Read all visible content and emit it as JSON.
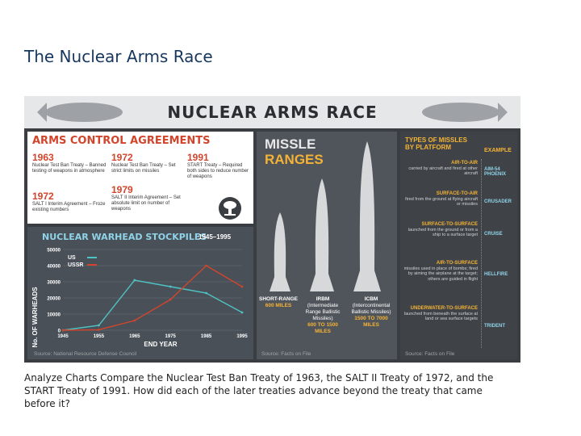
{
  "slide_title": "The Nuclear Arms Race",
  "caption": "Analyze Charts Compare the Nuclear Test Ban Treaty of 1963, the SALT II Treaty of 1972, and the START Treaty of 1991. How did each of the later treaties advance beyond the treaty that came before it?",
  "infographic": {
    "title": "NUCLEAR ARMS RACE",
    "arms_control": {
      "heading": "ARMS CONTROL AGREEMENTS",
      "treaties": [
        {
          "year": "1963",
          "text": "Nuclear Test Ban Treaty – Banned testing of weapons in atmosphere"
        },
        {
          "year": "1972",
          "text": "Nuclear Test Ban Treaty – Set strict limits on missiles"
        },
        {
          "year": "1991",
          "text": "START Treaty – Required both sides to reduce number of weapons"
        },
        {
          "year": "1972",
          "text": "SALT I Interim Agreement – Froze existing numbers"
        },
        {
          "year": "1979",
          "text": "SALT II Interim Agreement – Set absolute limit on number of weapons"
        }
      ]
    },
    "stockpiles": {
      "heading": "NUCLEAR WARHEAD STOCKPILES",
      "range": "1945–1995",
      "source": "Source: National Resource Defense Council"
    },
    "missiles": {
      "heading_1": "MISSLE",
      "heading_2": "RANGES",
      "source": "Source: Facts on File",
      "items": [
        {
          "name": "SHORT-RANGE",
          "full": "",
          "range": "600 MILES"
        },
        {
          "name": "IRBM",
          "full": "(Intermediate Range Ballistic Missiles)",
          "range": "600 TO 1500 MILES"
        },
        {
          "name": "ICBM",
          "full": "(Intercontinental Ballistic Missiles)",
          "range": "1500 TO 7000 MILES"
        }
      ]
    },
    "types": {
      "heading": "TYPES OF MISSLES BY PLATFORM",
      "example_label": "EXAMPLE",
      "source": "Source: Facts on File",
      "rows": [
        {
          "name": "AIR-TO-AIR",
          "desc": "carried by aircraft and fired at other aircraft",
          "example": "AIM-54 PHOENIX"
        },
        {
          "name": "SURFACE-TO-AIR",
          "desc": "fired from the ground at flying aircraft or missiles",
          "example": "CRUSADER"
        },
        {
          "name": "SURFACE-TO-SURFACE",
          "desc": "launched from the ground or from a ship to a surface target",
          "example": "CRUISE"
        },
        {
          "name": "AIR-TO-SURFACE",
          "desc": "missiles used in place of bombs; fired by aiming the airplane at the target; others are guided in flight",
          "example": "HELLFIRE"
        },
        {
          "name": "UNDERWATER-TO-SURFACE",
          "desc": "launched from beneath the surface at land or sea surface targets",
          "example": "TRIDENT"
        }
      ]
    }
  },
  "chart_data": {
    "type": "line",
    "title": "NUCLEAR WARHEAD STOCKPILES",
    "xlabel": "END YEAR",
    "ylabel": "No. OF WARHEADS",
    "x": [
      1945,
      1955,
      1965,
      1975,
      1985,
      1995
    ],
    "x_ticks": [
      "1945",
      "1955",
      "1965",
      "1975",
      "1985",
      "1995"
    ],
    "y_ticks": [
      "0",
      "10000",
      "20000",
      "30000",
      "40000",
      "50000"
    ],
    "ylim": [
      0,
      50000
    ],
    "legend_position": "top-left",
    "series": [
      {
        "name": "US",
        "color": "#4ec3c3",
        "values": [
          0,
          3000,
          31000,
          27000,
          23000,
          11000
        ]
      },
      {
        "name": "USSR",
        "color": "#d2452c",
        "values": [
          0,
          300,
          6000,
          19000,
          40000,
          27000
        ]
      }
    ]
  }
}
